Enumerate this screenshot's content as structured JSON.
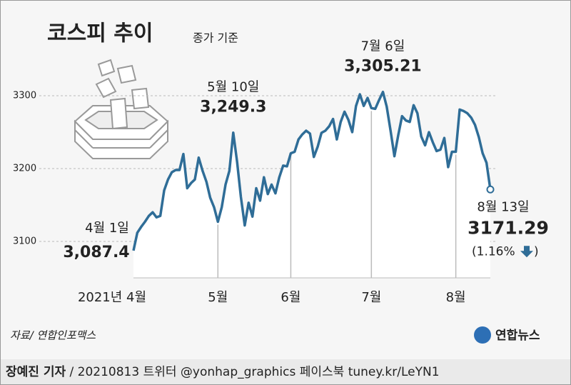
{
  "chart_data": {
    "type": "line",
    "title": "코스피 추이",
    "subtitle": "종가 기준",
    "categories": [
      "2021년 4월",
      null,
      null,
      null,
      null,
      null,
      null,
      null,
      null,
      null,
      null,
      null,
      null,
      null,
      null,
      null,
      null,
      null,
      null,
      null,
      null,
      null,
      "5월",
      null,
      null,
      null,
      null,
      null,
      null,
      null,
      null,
      null,
      null,
      null,
      null,
      null,
      null,
      null,
      null,
      null,
      null,
      "6월",
      null,
      null,
      null,
      null,
      null,
      null,
      null,
      null,
      null,
      null,
      null,
      null,
      null,
      null,
      null,
      null,
      null,
      null,
      null,
      null,
      "7월",
      null,
      null,
      null,
      null,
      null,
      null,
      null,
      null,
      null,
      null,
      null,
      null,
      null,
      null,
      null,
      null,
      null,
      null,
      null,
      null,
      null,
      "8월",
      null,
      null,
      null,
      null,
      null,
      null,
      null,
      null,
      null
    ],
    "values": [
      3087.4,
      3112,
      3120,
      3127,
      3135,
      3140,
      3133,
      3135,
      3170,
      3185,
      3195,
      3198,
      3198,
      3220,
      3173,
      3180,
      3185,
      3215,
      3197,
      3182,
      3160,
      3147,
      3127,
      3147,
      3178,
      3197,
      3249.3,
      3209,
      3161,
      3122,
      3153,
      3134,
      3173,
      3156,
      3188,
      3165,
      3178,
      3166,
      3188,
      3204,
      3203,
      3221,
      3223,
      3240,
      3247,
      3252,
      3248,
      3216,
      3230,
      3249,
      3252,
      3258,
      3268,
      3240,
      3264,
      3278,
      3267,
      3250,
      3286,
      3302,
      3286,
      3297,
      3283,
      3282,
      3294,
      3305.21,
      3285,
      3252,
      3217,
      3246,
      3272,
      3266,
      3264,
      3287,
      3276,
      3244,
      3232,
      3250,
      3236,
      3224,
      3226,
      3242,
      3202,
      3223,
      3223,
      3281,
      3279,
      3276,
      3270,
      3260,
      3243,
      3221,
      3208,
      3171.29
    ],
    "point_labels": [
      "4월 1일",
      null,
      null,
      null,
      null,
      null,
      null,
      null,
      null,
      null,
      null,
      null,
      null,
      null,
      null,
      null,
      null,
      null,
      null,
      null,
      null,
      null,
      null,
      null,
      null,
      null,
      "5월 10일",
      null,
      null,
      null,
      null,
      null,
      null,
      null,
      null,
      null,
      null,
      null,
      null,
      null,
      null,
      null,
      null,
      null,
      null,
      null,
      null,
      null,
      null,
      null,
      null,
      null,
      null,
      null,
      null,
      null,
      null,
      null,
      null,
      null,
      null,
      null,
      null,
      null,
      null,
      "7월 6일",
      null,
      null,
      null,
      null,
      null,
      null,
      null,
      null,
      null,
      null,
      null,
      null,
      null,
      null,
      null,
      null,
      null,
      null,
      null,
      null,
      null,
      null,
      null,
      null,
      null,
      null,
      null,
      "8월 13일"
    ],
    "value_labels": [
      "3,087.4",
      null,
      null,
      null,
      null,
      null,
      null,
      null,
      null,
      null,
      null,
      null,
      null,
      null,
      null,
      null,
      null,
      null,
      null,
      null,
      null,
      null,
      null,
      null,
      null,
      null,
      "3,249.3",
      null,
      null,
      null,
      null,
      null,
      null,
      null,
      null,
      null,
      null,
      null,
      null,
      null,
      null,
      null,
      null,
      null,
      null,
      null,
      null,
      null,
      null,
      null,
      null,
      null,
      null,
      null,
      null,
      null,
      null,
      null,
      null,
      null,
      null,
      null,
      null,
      null,
      null,
      "3,305.21",
      null,
      null,
      null,
      null,
      null,
      null,
      null,
      null,
      null,
      null,
      null,
      null,
      null,
      null,
      null,
      null,
      null,
      null,
      null,
      null,
      null,
      null,
      null,
      null,
      null,
      null,
      null,
      "3171.29"
    ],
    "change": {
      "prefix": "(1.16%",
      "suffix": ")"
    },
    "color": "#2f6d97",
    "ylim": [
      3050,
      3350
    ],
    "yticks": [
      3100,
      3200,
      3300
    ],
    "grid": true
  },
  "source": "자료/ 연합인포맥스",
  "logo": "연합뉴스",
  "footer": {
    "reporter": "장예진 기자",
    "credit": "/ 20210813 트위터 @yonhap_graphics  페이스북 tuney.kr/LeYN1"
  }
}
